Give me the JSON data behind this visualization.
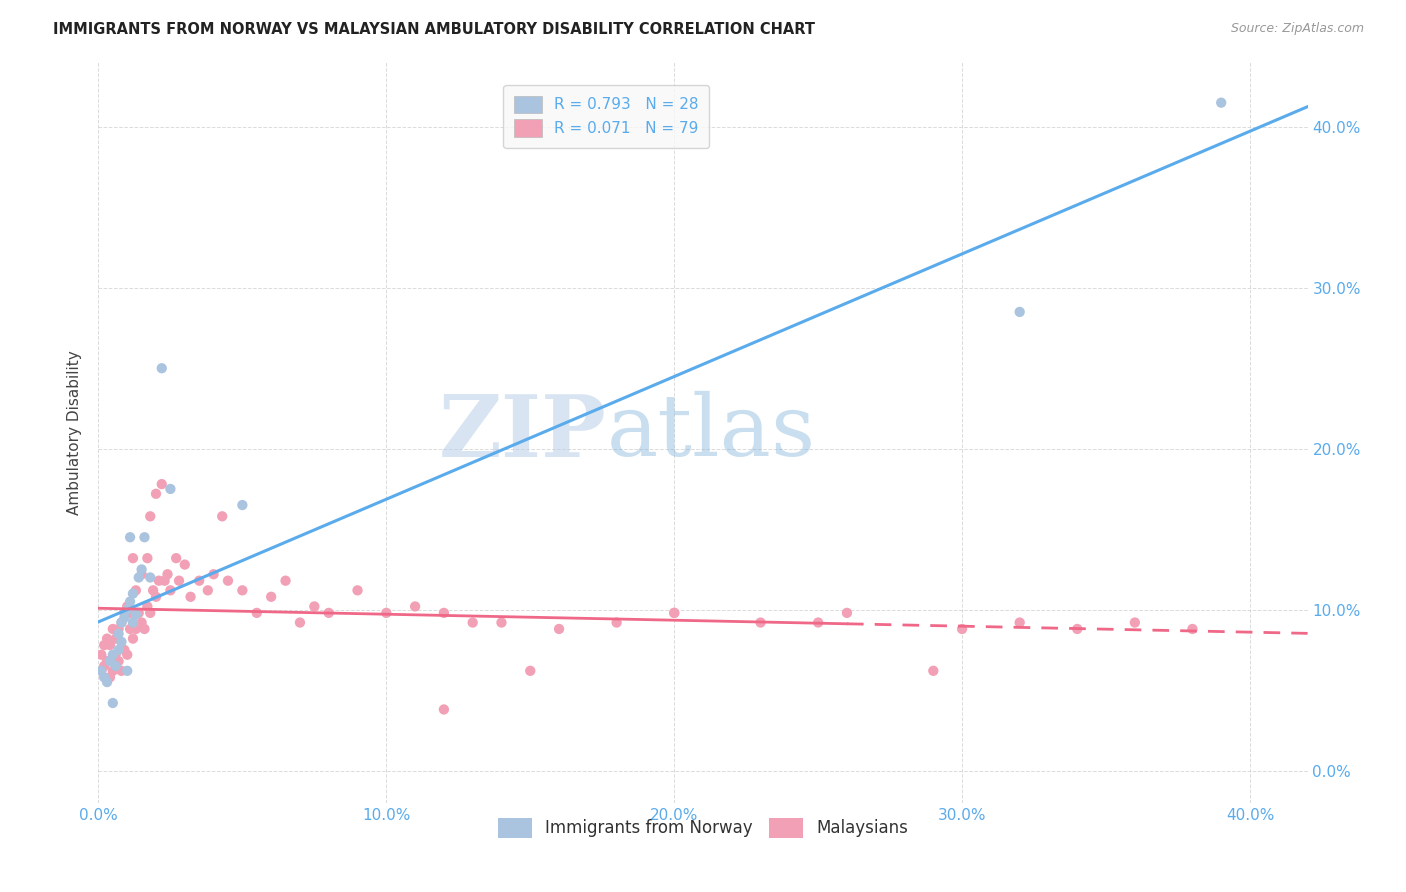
{
  "title": "IMMIGRANTS FROM NORWAY VS MALAYSIAN AMBULATORY DISABILITY CORRELATION CHART",
  "source": "Source: ZipAtlas.com",
  "ylabel": "Ambulatory Disability",
  "xlim": [
    0.0,
    0.42
  ],
  "ylim": [
    -0.02,
    0.44
  ],
  "yticks": [
    0.0,
    0.1,
    0.2,
    0.3,
    0.4
  ],
  "xticks": [
    0.0,
    0.1,
    0.2,
    0.3,
    0.4
  ],
  "norway_R": 0.793,
  "norway_N": 28,
  "malaysia_R": 0.071,
  "malaysia_N": 79,
  "norway_color": "#aac4e0",
  "malaysia_color": "#f2a0b5",
  "norway_line_color": "#5aabec",
  "malaysia_line_color": "#f06888",
  "tick_color": "#5aabec",
  "grid_color": "#cccccc",
  "watermark_color": "#cde0f0",
  "norway_x": [
    0.001,
    0.002,
    0.003,
    0.004,
    0.005,
    0.005,
    0.006,
    0.007,
    0.007,
    0.008,
    0.008,
    0.009,
    0.01,
    0.01,
    0.011,
    0.011,
    0.012,
    0.012,
    0.013,
    0.014,
    0.015,
    0.016,
    0.018,
    0.022,
    0.025,
    0.05,
    0.32,
    0.39
  ],
  "norway_y": [
    0.062,
    0.058,
    0.055,
    0.068,
    0.042,
    0.072,
    0.065,
    0.075,
    0.085,
    0.08,
    0.092,
    0.095,
    0.062,
    0.1,
    0.105,
    0.145,
    0.11,
    0.092,
    0.097,
    0.12,
    0.125,
    0.145,
    0.12,
    0.25,
    0.175,
    0.165,
    0.285,
    0.415
  ],
  "malaysia_x": [
    0.001,
    0.001,
    0.002,
    0.002,
    0.003,
    0.003,
    0.004,
    0.004,
    0.005,
    0.005,
    0.006,
    0.006,
    0.007,
    0.007,
    0.008,
    0.008,
    0.009,
    0.009,
    0.01,
    0.01,
    0.011,
    0.011,
    0.012,
    0.012,
    0.013,
    0.013,
    0.014,
    0.015,
    0.015,
    0.016,
    0.017,
    0.017,
    0.018,
    0.018,
    0.019,
    0.02,
    0.02,
    0.021,
    0.022,
    0.023,
    0.024,
    0.025,
    0.027,
    0.028,
    0.03,
    0.032,
    0.035,
    0.038,
    0.04,
    0.043,
    0.045,
    0.05,
    0.055,
    0.06,
    0.065,
    0.07,
    0.075,
    0.08,
    0.09,
    0.1,
    0.11,
    0.12,
    0.13,
    0.14,
    0.16,
    0.18,
    0.2,
    0.23,
    0.26,
    0.29,
    0.32,
    0.34,
    0.36,
    0.38,
    0.2,
    0.25,
    0.3,
    0.15,
    0.12
  ],
  "malaysia_y": [
    0.072,
    0.062,
    0.065,
    0.078,
    0.068,
    0.082,
    0.058,
    0.078,
    0.062,
    0.088,
    0.072,
    0.082,
    0.068,
    0.088,
    0.062,
    0.092,
    0.075,
    0.098,
    0.072,
    0.102,
    0.088,
    0.098,
    0.082,
    0.132,
    0.088,
    0.112,
    0.098,
    0.092,
    0.122,
    0.088,
    0.102,
    0.132,
    0.098,
    0.158,
    0.112,
    0.108,
    0.172,
    0.118,
    0.178,
    0.118,
    0.122,
    0.112,
    0.132,
    0.118,
    0.128,
    0.108,
    0.118,
    0.112,
    0.122,
    0.158,
    0.118,
    0.112,
    0.098,
    0.108,
    0.118,
    0.092,
    0.102,
    0.098,
    0.112,
    0.098,
    0.102,
    0.098,
    0.092,
    0.092,
    0.088,
    0.092,
    0.098,
    0.092,
    0.098,
    0.062,
    0.092,
    0.088,
    0.092,
    0.088,
    0.098,
    0.092,
    0.088,
    0.062,
    0.038
  ],
  "malaysia_line_solid_end": 0.26,
  "norway_line_start_x": 0.0,
  "norway_line_end_x": 0.42
}
